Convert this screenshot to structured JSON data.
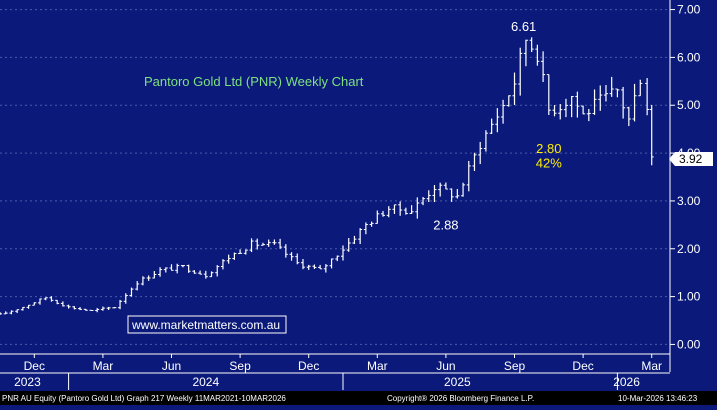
{
  "colors": {
    "background": "#0b1a7a",
    "price_bars": "#ffffff",
    "title": "#7fe07f",
    "annotation": "#ffee00",
    "grid": "#4a5aa8",
    "last_price_bg": "#ffffff",
    "last_price_text": "#000000",
    "footer_bg": "#000000",
    "footer_text": "#ffffff"
  },
  "watermark": "www.marketmatters.com.au",
  "footer": {
    "left": "PNR AU Equity (Pantoro Gold Ltd) Graph 217 Weekly 11MAR2021-10MAR2026",
    "center": "Copyright® 2026 Bloomberg Finance L.P.",
    "right": "10-Mar-2026 13:46:23"
  },
  "chart_data": {
    "type": "ohlc",
    "title": "Pantoro Gold Ltd (PNR) Weekly Chart",
    "y_axis": {
      "side": "right",
      "ticks": [
        0.0,
        1.0,
        2.0,
        3.0,
        4.0,
        5.0,
        6.0,
        7.0
      ],
      "tick_labels": [
        "0.00",
        "1.00",
        "2.00",
        "3.00",
        "4.00",
        "5.00",
        "6.00",
        "7.00"
      ],
      "ylim": [
        -0.2,
        7.2
      ]
    },
    "x_axis": {
      "month_labels": [
        "Dec",
        "Mar",
        "Jun",
        "Sep",
        "Dec",
        "Mar",
        "Jun",
        "Sep",
        "Dec",
        "Mar"
      ],
      "month_index": [
        -0.5,
        2.5,
        5.5,
        8.5,
        11.5,
        14.5,
        17.5,
        20.5,
        23.5,
        26.5
      ],
      "year_labels": [
        "2023",
        "2024",
        "2025",
        "2026"
      ],
      "year_index": [
        -0.8,
        7.0,
        18.0,
        25.4
      ],
      "year_dividers": [
        1.0,
        13.0,
        25.0
      ],
      "xlim": [
        -2.0,
        27.3
      ]
    },
    "grid": "horizontal",
    "last_price": "3.92",
    "annotations": [
      {
        "text": "6.61",
        "x": 20.9,
        "y": 6.55
      },
      {
        "text": "2.88",
        "x": 17.5,
        "y": 2.4
      },
      {
        "text": "2.80",
        "x": 22.0,
        "y": 4.0,
        "highlight": true
      },
      {
        "text": "42%",
        "x": 22.0,
        "y": 3.7,
        "highlight": true
      }
    ],
    "monthly_closes": {
      "x": [
        -2.0,
        -1.0,
        0.0,
        1.0,
        2.0,
        3.0,
        4.0,
        5.0,
        6.0,
        7.0,
        8.0,
        9.0,
        10.0,
        11.0,
        12.0,
        13.0,
        14.0,
        15.0,
        16.0,
        17.0,
        18.0,
        19.0,
        20.0,
        20.5,
        21.0,
        21.5,
        22.0,
        22.5,
        23.0,
        23.5,
        24.0,
        24.5,
        25.0,
        25.5,
        26.0,
        26.3,
        26.5
      ],
      "close": [
        0.62,
        0.78,
        0.98,
        0.78,
        0.7,
        0.78,
        1.3,
        1.55,
        1.62,
        1.45,
        1.82,
        2.1,
        2.08,
        1.7,
        1.55,
        2.0,
        2.5,
        2.85,
        2.8,
        3.3,
        3.1,
        4.2,
        5.0,
        5.5,
        6.4,
        6.1,
        4.9,
        5.0,
        5.2,
        4.8,
        5.0,
        5.15,
        5.3,
        4.7,
        5.6,
        5.0,
        3.92
      ]
    }
  }
}
